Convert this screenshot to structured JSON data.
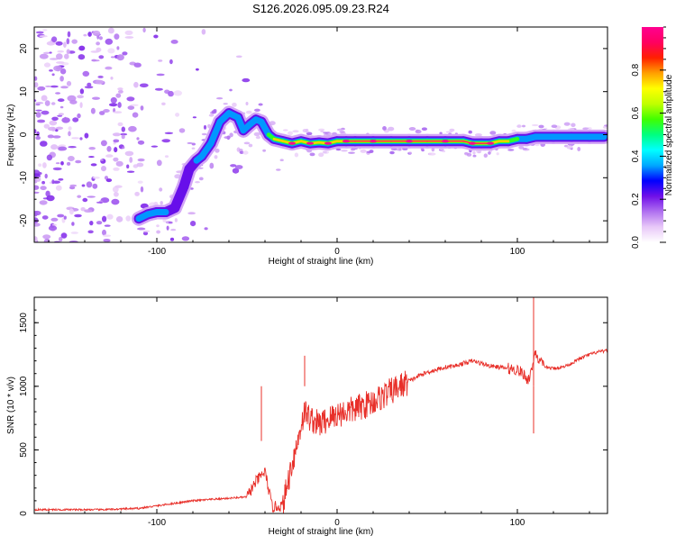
{
  "title": "S126.2026.095.09.23.R24",
  "chart_data": [
    {
      "type": "heatmap",
      "xlabel": "Height of straight line (km)",
      "ylabel": "Frequency (Hz)",
      "xlim": [
        -168,
        150
      ],
      "ylim": [
        -25,
        25
      ],
      "xticks": [
        -100,
        0,
        100
      ],
      "yticks": [
        -20,
        -10,
        0,
        10,
        20
      ],
      "colorbar": {
        "label": "Normalized spectral amplitude",
        "range": [
          0,
          1
        ],
        "ticks": [
          0.0,
          0.2,
          0.4,
          0.6,
          0.8
        ],
        "tick_labels": [
          "0.0",
          "0.2",
          "0.4",
          "0.6",
          "0.8"
        ],
        "colors": [
          "#ffffff",
          "#e8c8f8",
          "#b070f0",
          "#7010e8",
          "#0000ff",
          "#00a8ff",
          "#00ffff",
          "#00ff80",
          "#40ff00",
          "#c0ff00",
          "#ffff00",
          "#ffa000",
          "#ff2000",
          "#ff0060",
          "#ff0090"
        ]
      },
      "ridge": {
        "x": [
          -110,
          -105,
          -100,
          -95,
          -90,
          -85,
          -82,
          -78,
          -75,
          -70,
          -65,
          -60,
          -55,
          -52,
          -48,
          -45,
          -42,
          -38,
          -35,
          -30,
          -25,
          -20,
          -15,
          -10,
          -5,
          0,
          5,
          10,
          20,
          30,
          40,
          50,
          60,
          70,
          75,
          80,
          85,
          90,
          95,
          100,
          105,
          110,
          120,
          130,
          140,
          148
        ],
        "y": [
          -19.5,
          -18.5,
          -18,
          -18,
          -17,
          -12,
          -8,
          -6,
          -5,
          -2,
          3,
          5,
          4,
          1,
          2.5,
          3.5,
          3,
          0,
          -1,
          -1.5,
          -2,
          -1.5,
          -2,
          -1.8,
          -2,
          -1.5,
          -1.5,
          -1.5,
          -1.5,
          -1.5,
          -1.5,
          -1.5,
          -1.5,
          -1.5,
          -2,
          -2,
          -2,
          -1.5,
          -1.5,
          -1,
          -1,
          -0.5,
          -0.5,
          -0.5,
          -0.5,
          -0.5
        ],
        "amplitude": [
          0.55,
          0.4,
          0.35,
          0.3,
          0.25,
          0.3,
          0.25,
          0.3,
          0.35,
          0.35,
          0.3,
          0.3,
          0.3,
          0.3,
          0.35,
          0.4,
          0.45,
          0.6,
          0.7,
          0.75,
          0.8,
          0.85,
          0.8,
          0.8,
          0.85,
          0.85,
          0.9,
          0.95,
          0.95,
          0.95,
          0.95,
          0.95,
          0.95,
          0.95,
          0.95,
          0.95,
          0.9,
          0.85,
          0.7,
          0.5,
          0.45,
          0.45,
          0.45,
          0.45,
          0.45,
          0.45
        ]
      }
    },
    {
      "type": "line",
      "xlabel": "Height of straight line (km)",
      "ylabel": "SNR (10 * v/v)",
      "xlim": [
        -168,
        150
      ],
      "ylim": [
        0,
        1700
      ],
      "xticks": [
        -100,
        0,
        100
      ],
      "yticks": [
        0,
        500,
        1000,
        1500
      ],
      "color": "#e8302a",
      "series": [
        {
          "x": [
            -168,
            -150,
            -130,
            -110,
            -100,
            -90,
            -80,
            -70,
            -60,
            -50,
            -45,
            -40,
            -36,
            -30,
            -25,
            -22,
            -20,
            -18,
            -15,
            -12,
            -10,
            -5,
            0,
            5,
            10,
            15,
            20,
            25,
            30,
            35,
            40,
            45,
            50,
            55,
            60,
            65,
            70,
            75,
            80,
            85,
            90,
            95,
            100,
            103,
            106,
            108,
            110,
            112,
            115,
            120,
            125,
            130,
            135,
            140,
            145,
            150
          ],
          "y": [
            30,
            30,
            30,
            40,
            60,
            80,
            100,
            110,
            120,
            130,
            250,
            330,
            50,
            60,
            400,
            550,
            700,
            800,
            750,
            720,
            700,
            740,
            780,
            800,
            820,
            850,
            880,
            920,
            960,
            1000,
            1040,
            1080,
            1110,
            1130,
            1150,
            1160,
            1180,
            1200,
            1180,
            1160,
            1150,
            1140,
            1130,
            1100,
            1050,
            1130,
            1280,
            1200,
            1150,
            1140,
            1150,
            1180,
            1220,
            1250,
            1270,
            1280
          ]
        }
      ],
      "annotations": [
        {
          "x": -42,
          "y": 570,
          "label": ""
        },
        {
          "x": -18,
          "y": 1240,
          "label": ""
        },
        {
          "x": 109,
          "y": 1700,
          "label": ""
        },
        {
          "x": 109,
          "y": 630,
          "label": ""
        }
      ]
    }
  ]
}
